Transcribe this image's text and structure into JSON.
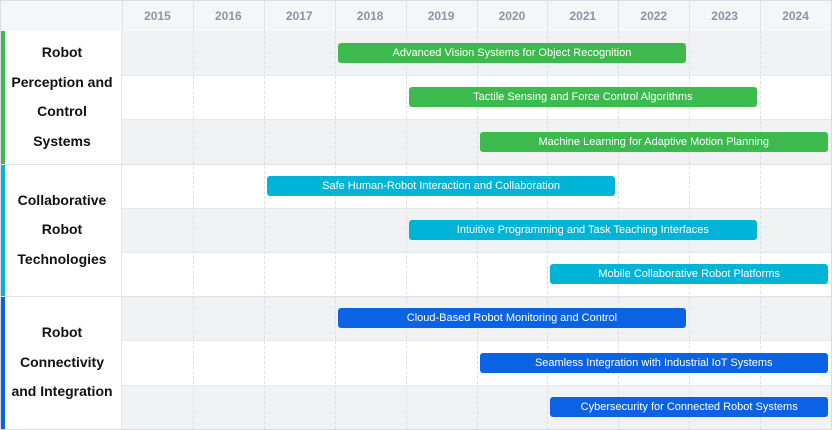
{
  "chart_data": {
    "type": "gantt",
    "years": [
      "2015",
      "2016",
      "2017",
      "2018",
      "2019",
      "2020",
      "2021",
      "2022",
      "2023",
      "2024"
    ],
    "x_range": [
      2015,
      2025
    ],
    "groups": [
      {
        "name": "Robot Perception and Control Systems",
        "color": "#3dba4e",
        "tasks": [
          {
            "label": "Advanced Vision Systems for Object Recognition",
            "start": 2018,
            "end": 2023
          },
          {
            "label": "Tactile Sensing and Force Control Algorithms",
            "start": 2019,
            "end": 2024
          },
          {
            "label": "Machine Learning for Adaptive Motion Planning",
            "start": 2020,
            "end": 2025
          }
        ]
      },
      {
        "name": "Collaborative Robot Technologies",
        "color": "#00b4d8",
        "tasks": [
          {
            "label": "Safe Human-Robot Interaction and Collaboration",
            "start": 2017,
            "end": 2022
          },
          {
            "label": "Intuitive Programming and Task Teaching Interfaces",
            "start": 2019,
            "end": 2024
          },
          {
            "label": "Mobile Collaborative Robot Platforms",
            "start": 2021,
            "end": 2025
          }
        ]
      },
      {
        "name": "Robot Connectivity and Integration",
        "color": "#0b62e4",
        "tasks": [
          {
            "label": "Cloud-Based Robot Monitoring and Control",
            "start": 2018,
            "end": 2023
          },
          {
            "label": "Seamless Integration with Industrial IoT Systems",
            "start": 2020,
            "end": 2025
          },
          {
            "label": "Cybersecurity for Connected Robot Systems",
            "start": 2021,
            "end": 2025
          }
        ]
      }
    ]
  }
}
